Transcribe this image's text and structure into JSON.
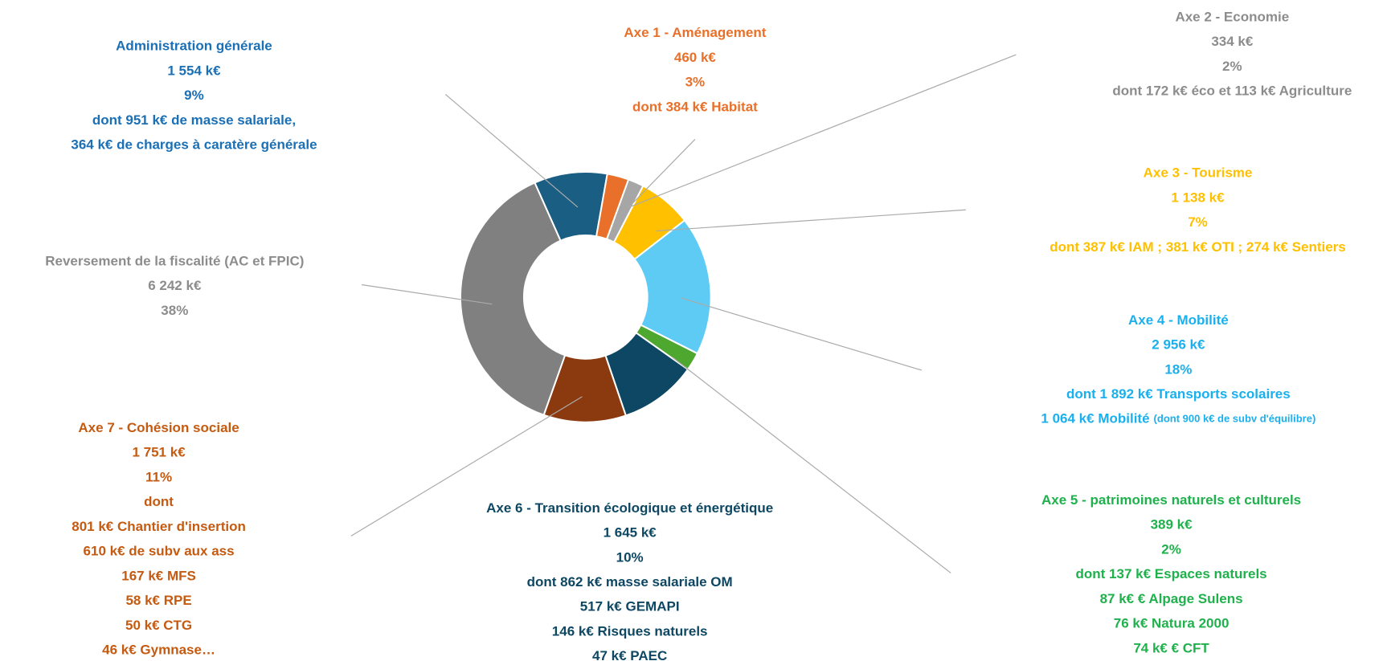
{
  "chart_data": {
    "type": "donut",
    "categories": [
      "Administration générale",
      "Axe 1 - Aménagement",
      "Axe 2 - Economie",
      "Axe 3 - Tourisme",
      "Axe 4 - Mobilité",
      "Axe 5 - patrimoines naturels et culturels",
      "Axe 6 - Transition écologique et énergétique",
      "Axe 7 - Cohésion sociale",
      "Reversement de la fiscalité (AC et FPIC)"
    ],
    "values": [
      1554,
      460,
      334,
      1138,
      2956,
      389,
      1645,
      1751,
      6242
    ],
    "value_labels": [
      "1 554 k€",
      "460 k€",
      "334 k€",
      "1 138 k€",
      "2 956 k€",
      "389 k€",
      "1 645 k€",
      "1 751 k€",
      "6 242 k€"
    ],
    "percent_labels": [
      "9%",
      "3%",
      "2%",
      "7%",
      "18%",
      "2%",
      "10%",
      "11%",
      "38%"
    ],
    "details": [
      [
        "dont 951 k€ de masse salariale,",
        "364 k€ de charges à caratère générale"
      ],
      [
        "dont 384 k€ Habitat"
      ],
      [
        "dont 172 k€ éco et 113 k€ Agriculture"
      ],
      [
        "dont 387 k€ IAM ; 381 k€ OTI ; 274 k€ Sentiers"
      ],
      [
        "dont 1 892 k€ Transports scolaires",
        "1 064 k€ Mobilité"
      ],
      [
        "dont 137 k€ Espaces naturels",
        "87 k€ € Alpage Sulens",
        "76 k€ Natura 2000",
        "74 k€ € CFT"
      ],
      [
        "dont 862 k€ masse salariale OM",
        "517 k€ GEMAPI",
        "146 k€ Risques naturels",
        "47 k€ PAEC"
      ],
      [
        "dont",
        "801 k€ Chantier d'insertion",
        "610 k€ de subv aux ass",
        "167 k€ MFS",
        "58 k€ RPE",
        "50 k€ CTG",
        "46 k€ Gymnase…"
      ],
      []
    ],
    "mobility_note": "(dont 900 k€ de subv d'équilibre)",
    "colors": [
      "#1a5e84",
      "#e8702a",
      "#a6a6a6",
      "#ffc000",
      "#5ecbf5",
      "#4ea72e",
      "#0e4763",
      "#8b3a0f",
      "#808080"
    ],
    "label_colors": [
      "#1a6fb5",
      "#e8702a",
      "#8c8c8c",
      "#ffc000",
      "#1ab0ee",
      "#1fb14c",
      "#0e4763",
      "#c55a11",
      "#8c8c8c"
    ]
  }
}
